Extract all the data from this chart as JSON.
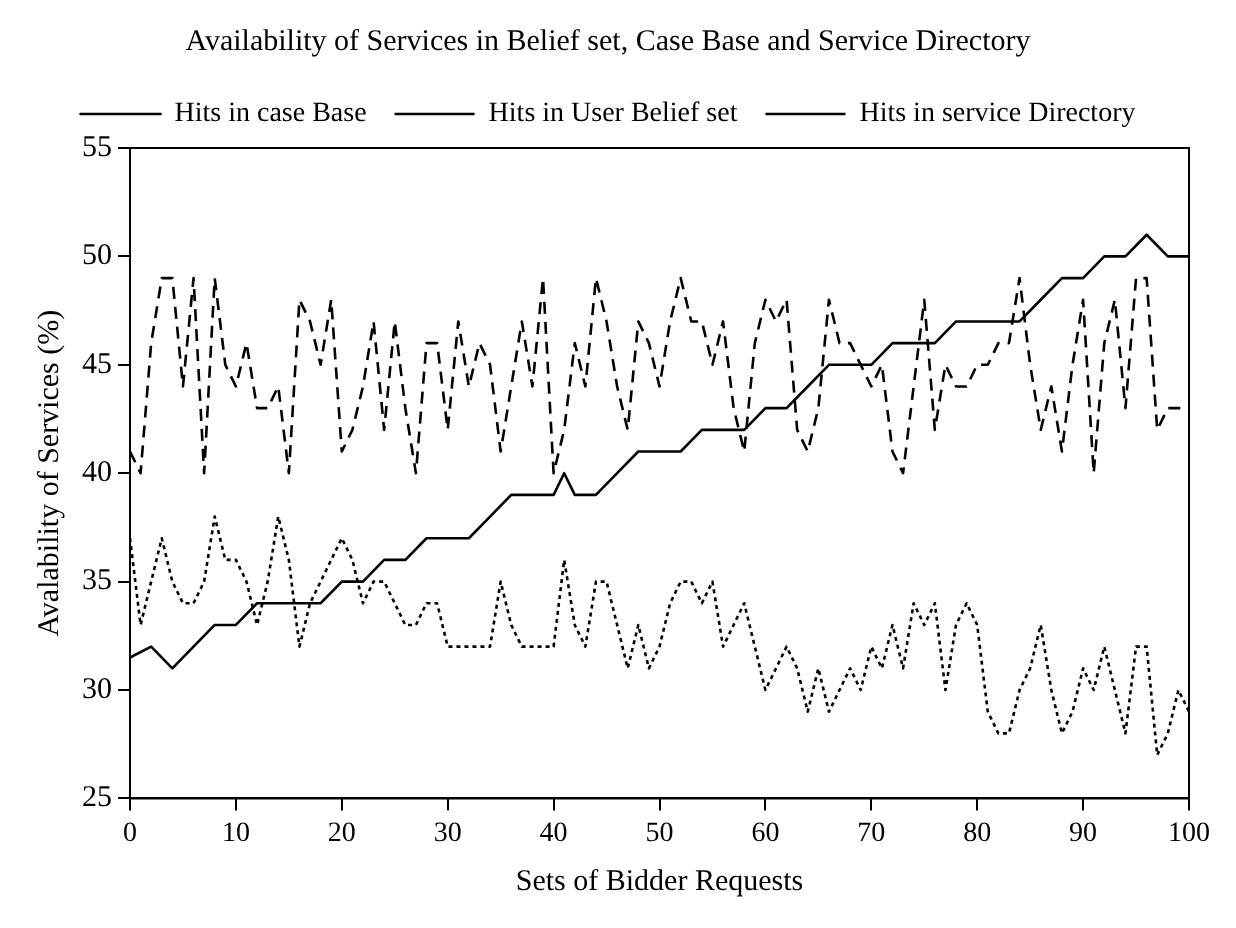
{
  "chart_data": {
    "type": "line",
    "title": "Availability of Services in Belief set, Case Base and Service Directory",
    "xlabel": "Sets of Bidder Requests",
    "ylabel": "Avalability of Services (%)",
    "xlim": [
      0,
      100
    ],
    "xticks": [
      0,
      10,
      20,
      30,
      40,
      50,
      60,
      70,
      80,
      90,
      100
    ],
    "ylim": [
      25,
      55
    ],
    "yticks": [
      25,
      30,
      35,
      40,
      45,
      50,
      55
    ],
    "grid": false,
    "legend": "top",
    "marker": "none",
    "series": [
      {
        "name": "Hits in case Base",
        "color": "#000000",
        "line_style": "solid",
        "x": [
          0,
          2,
          4,
          6,
          8,
          10,
          12,
          14,
          16,
          18,
          20,
          22,
          24,
          26,
          28,
          30,
          32,
          34,
          36,
          38,
          40,
          41,
          42,
          44,
          46,
          48,
          50,
          52,
          54,
          56,
          58,
          60,
          62,
          64,
          66,
          68,
          70,
          72,
          74,
          76,
          78,
          80,
          82,
          84,
          86,
          88,
          90,
          92,
          94,
          96,
          98,
          100
        ],
        "values": [
          31.5,
          32,
          31,
          32,
          33,
          33,
          34,
          34,
          34,
          34,
          35,
          35,
          36,
          36,
          37,
          37,
          37,
          38,
          39,
          39,
          39,
          40,
          39,
          39,
          40,
          41,
          41,
          41,
          42,
          42,
          42,
          43,
          43,
          44,
          45,
          45,
          45,
          46,
          46,
          46,
          47,
          47,
          47,
          47,
          48,
          49,
          49,
          50,
          50,
          51,
          50,
          50
        ]
      },
      {
        "name": "Hits in User Belief set",
        "color": "#000000",
        "line_style": "dashed",
        "x": [
          0,
          1,
          2,
          3,
          4,
          5,
          6,
          7,
          8,
          9,
          10,
          11,
          12,
          13,
          14,
          15,
          16,
          17,
          18,
          19,
          20,
          21,
          22,
          23,
          24,
          25,
          26,
          27,
          28,
          29,
          30,
          31,
          32,
          33,
          34,
          35,
          36,
          37,
          38,
          39,
          40,
          41,
          42,
          43,
          44,
          45,
          46,
          47,
          48,
          49,
          50,
          51,
          52,
          53,
          54,
          55,
          56,
          57,
          58,
          59,
          60,
          61,
          62,
          63,
          64,
          65,
          66,
          67,
          68,
          69,
          70,
          71,
          72,
          73,
          74,
          75,
          76,
          77,
          78,
          79,
          80,
          81,
          82,
          83,
          84,
          85,
          86,
          87,
          88,
          89,
          90,
          91,
          92,
          93,
          94,
          95,
          96,
          97,
          98,
          99,
          100
        ],
        "values": [
          41,
          40,
          46,
          49,
          49,
          44,
          49,
          40,
          49,
          45,
          44,
          46,
          43,
          43,
          44,
          40,
          48,
          47,
          45,
          48,
          41,
          42,
          44,
          47,
          42,
          47,
          43,
          40,
          46,
          46,
          42,
          47,
          44,
          46,
          45,
          41,
          44,
          47,
          44,
          49,
          40,
          42,
          46,
          44,
          49,
          47,
          44,
          42,
          47,
          46,
          44,
          47,
          49,
          47,
          47,
          45,
          47,
          43,
          41,
          46,
          48,
          47,
          48,
          42,
          41,
          43,
          48,
          46,
          46,
          45,
          44,
          45,
          41,
          40,
          44,
          48,
          42,
          45,
          44,
          44,
          45,
          45,
          46,
          46,
          49,
          45,
          42,
          44,
          41,
          45,
          48,
          40,
          46,
          48,
          43,
          49,
          49,
          42,
          43,
          43,
          43
        ]
      },
      {
        "name": "Hits in service Directory",
        "color": "#000000",
        "line_style": "dotted",
        "x": [
          0,
          1,
          2,
          3,
          4,
          5,
          6,
          7,
          8,
          9,
          10,
          11,
          12,
          13,
          14,
          15,
          16,
          17,
          18,
          19,
          20,
          21,
          22,
          23,
          24,
          25,
          26,
          27,
          28,
          29,
          30,
          31,
          32,
          33,
          34,
          35,
          36,
          37,
          38,
          39,
          40,
          41,
          42,
          43,
          44,
          45,
          46,
          47,
          48,
          49,
          50,
          51,
          52,
          53,
          54,
          55,
          56,
          57,
          58,
          59,
          60,
          61,
          62,
          63,
          64,
          65,
          66,
          67,
          68,
          69,
          70,
          71,
          72,
          73,
          74,
          75,
          76,
          77,
          78,
          79,
          80,
          81,
          82,
          83,
          84,
          85,
          86,
          87,
          88,
          89,
          90,
          91,
          92,
          93,
          94,
          95,
          96,
          97,
          98,
          99,
          100
        ],
        "values": [
          37,
          33,
          35,
          37,
          35,
          34,
          34,
          35,
          38,
          36,
          36,
          35,
          33,
          35,
          38,
          36,
          32,
          34,
          35,
          36,
          37,
          36,
          34,
          35,
          35,
          34,
          33,
          33,
          34,
          34,
          32,
          32,
          32,
          32,
          32,
          35,
          33,
          32,
          32,
          32,
          32,
          36,
          33,
          32,
          35,
          35,
          33,
          31,
          33,
          31,
          32,
          34,
          35,
          35,
          34,
          35,
          32,
          33,
          34,
          32,
          30,
          31,
          32,
          31,
          29,
          31,
          29,
          30,
          31,
          30,
          32,
          31,
          33,
          31,
          34,
          33,
          34,
          30,
          33,
          34,
          33,
          29,
          28,
          28,
          30,
          31,
          33,
          30,
          28,
          29,
          31,
          30,
          32,
          30,
          28,
          32,
          32,
          27,
          28,
          30,
          29
        ]
      }
    ]
  }
}
